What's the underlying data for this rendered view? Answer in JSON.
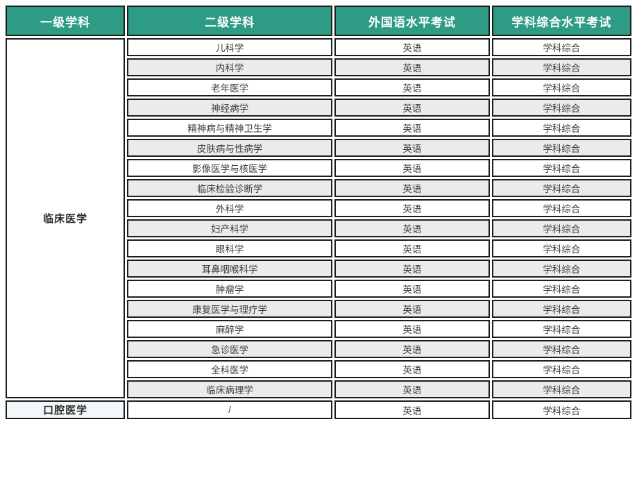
{
  "colors": {
    "header_bg": "#2E9C84",
    "header_text": "#FFFFFF",
    "row_alt_bg": "#ECEBE9",
    "border": "#1D1D1D",
    "body_text": "#3C3C3C",
    "oral_cell_bg": "#F2F8FA"
  },
  "table": {
    "headers": [
      "一级学科",
      "二级学科",
      "外国语水平考试",
      "学科综合水平考试"
    ],
    "groups": [
      {
        "primary": "临床医学",
        "rows": [
          {
            "secondary": "儿科学",
            "foreign_exam": "英语",
            "comprehensive_exam": "学科综合"
          },
          {
            "secondary": "内科学",
            "foreign_exam": "英语",
            "comprehensive_exam": "学科综合"
          },
          {
            "secondary": "老年医学",
            "foreign_exam": "英语",
            "comprehensive_exam": "学科综合"
          },
          {
            "secondary": "神经病学",
            "foreign_exam": "英语",
            "comprehensive_exam": "学科综合"
          },
          {
            "secondary": "精神病与精神卫生学",
            "foreign_exam": "英语",
            "comprehensive_exam": "学科综合"
          },
          {
            "secondary": "皮肤病与性病学",
            "foreign_exam": "英语",
            "comprehensive_exam": "学科综合"
          },
          {
            "secondary": "影像医学与核医学",
            "foreign_exam": "英语",
            "comprehensive_exam": "学科综合"
          },
          {
            "secondary": "临床检验诊断学",
            "foreign_exam": "英语",
            "comprehensive_exam": "学科综合"
          },
          {
            "secondary": "外科学",
            "foreign_exam": "英语",
            "comprehensive_exam": "学科综合"
          },
          {
            "secondary": "妇产科学",
            "foreign_exam": "英语",
            "comprehensive_exam": "学科综合"
          },
          {
            "secondary": "眼科学",
            "foreign_exam": "英语",
            "comprehensive_exam": "学科综合"
          },
          {
            "secondary": "耳鼻咽喉科学",
            "foreign_exam": "英语",
            "comprehensive_exam": "学科综合"
          },
          {
            "secondary": "肿瘤学",
            "foreign_exam": "英语",
            "comprehensive_exam": "学科综合"
          },
          {
            "secondary": "康复医学与理疗学",
            "foreign_exam": "英语",
            "comprehensive_exam": "学科综合"
          },
          {
            "secondary": "麻醉学",
            "foreign_exam": "英语",
            "comprehensive_exam": "学科综合"
          },
          {
            "secondary": "急诊医学",
            "foreign_exam": "英语",
            "comprehensive_exam": "学科综合"
          },
          {
            "secondary": "全科医学",
            "foreign_exam": "英语",
            "comprehensive_exam": "学科综合"
          },
          {
            "secondary": "临床病理学",
            "foreign_exam": "英语",
            "comprehensive_exam": "学科综合"
          }
        ]
      },
      {
        "primary": "口腔医学",
        "rows": [
          {
            "secondary": "/",
            "foreign_exam": "英语",
            "comprehensive_exam": "学科综合"
          }
        ]
      }
    ]
  }
}
